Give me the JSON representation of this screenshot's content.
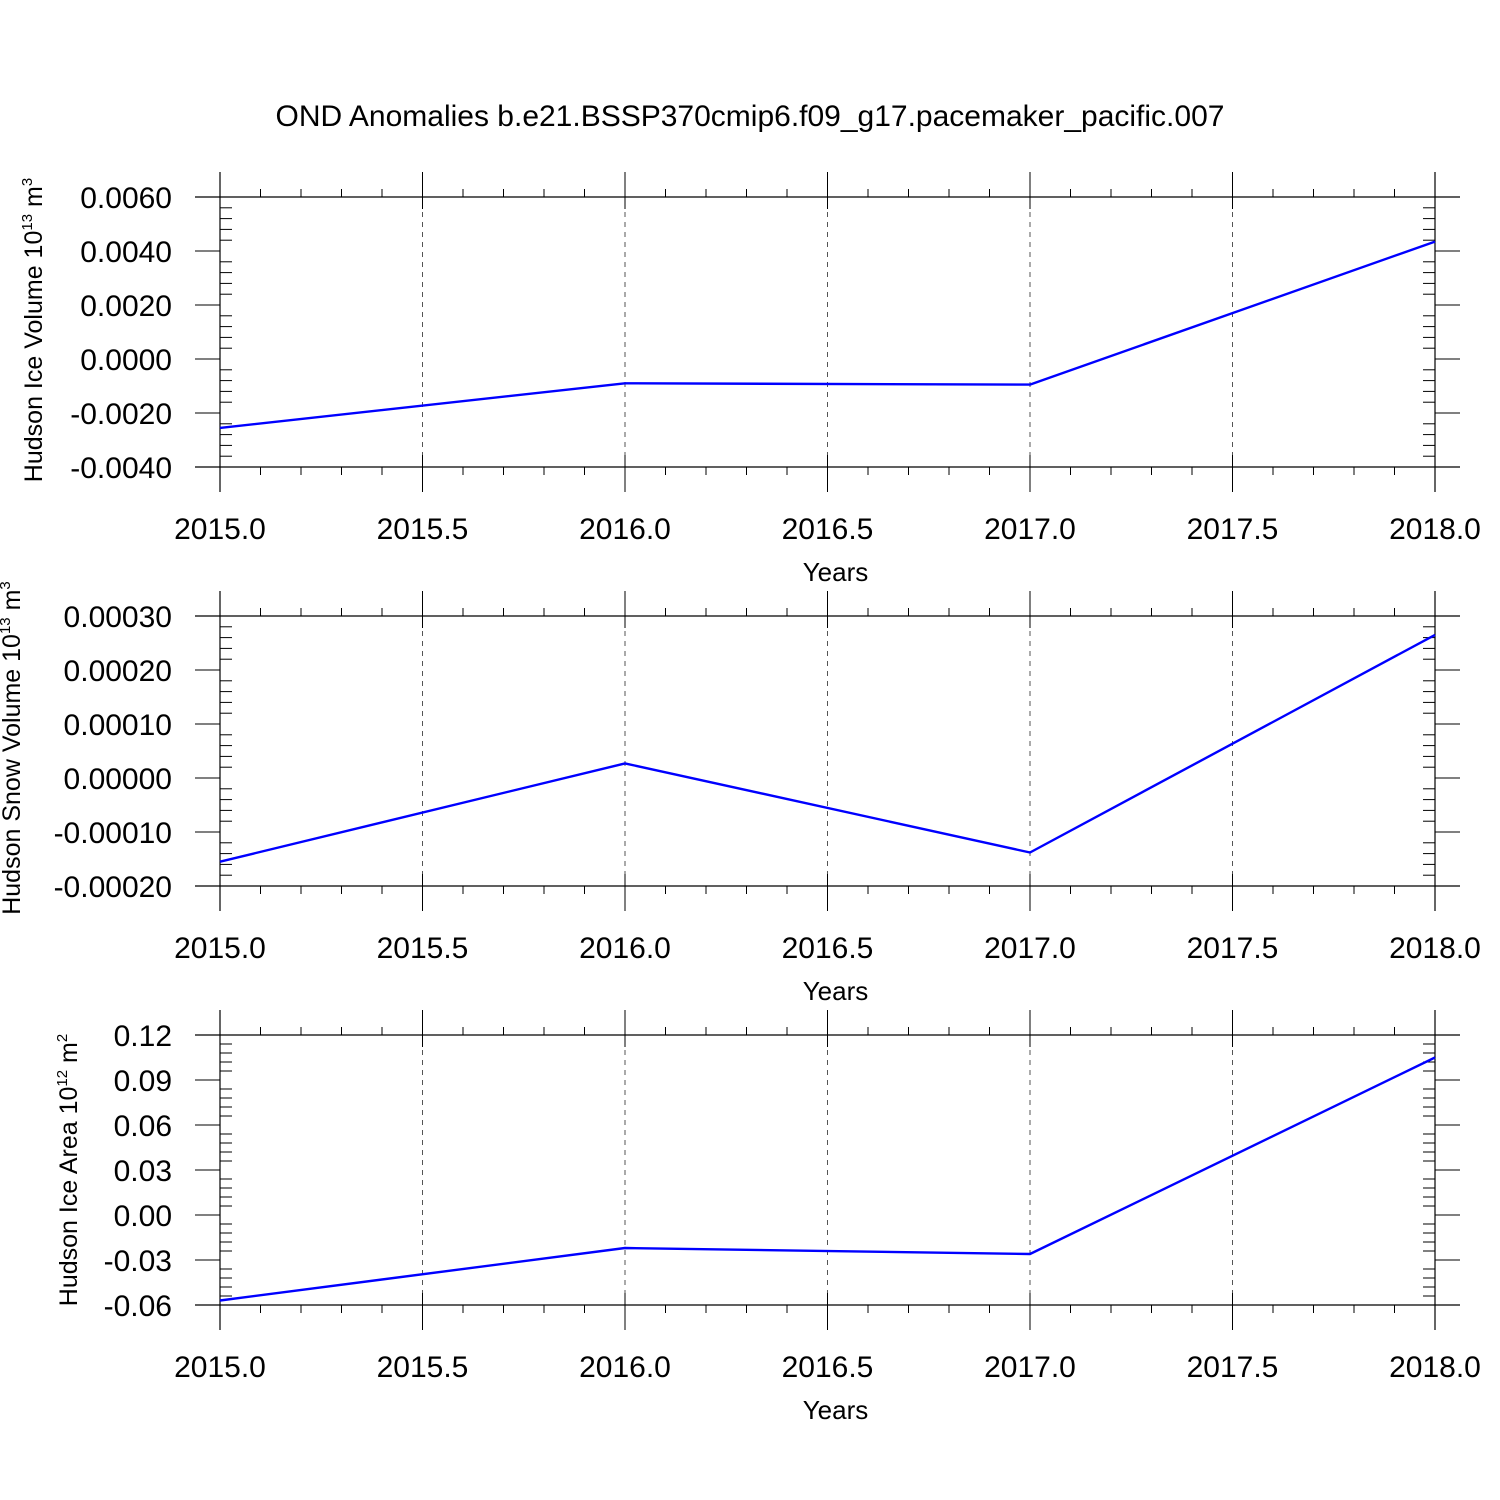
{
  "title": "OND Anomalies b.e21.BSSP370cmip6.f09_g17.pacemaker_pacific.007",
  "colors": {
    "series": "#0000ff"
  },
  "chart_data": [
    {
      "type": "line",
      "ylabel": "Hudson Ice Volume 10",
      "ylabel_exp": "13",
      "ylabel_unit": " m",
      "ylabel_unit_exp": "3",
      "xlabel": "Years",
      "xlim": [
        2015.0,
        2018.0
      ],
      "ylim": [
        -0.004,
        0.006
      ],
      "xticks": [
        "2015.0",
        "2015.5",
        "2016.0",
        "2016.5",
        "2017.0",
        "2017.5",
        "2018.0"
      ],
      "yticks": [
        "-0.0040",
        "-0.0020",
        "0.0000",
        "0.0020",
        "0.0040",
        "0.0060"
      ],
      "x": [
        2015,
        2016,
        2017,
        2018
      ],
      "y": [
        -0.00255,
        -0.0009,
        -0.00095,
        0.00435
      ]
    },
    {
      "type": "line",
      "ylabel": "Hudson Snow Volume 10",
      "ylabel_exp": "13",
      "ylabel_unit": " m",
      "ylabel_unit_exp": "3",
      "xlabel": "Years",
      "xlim": [
        2015.0,
        2018.0
      ],
      "ylim": [
        -0.0002,
        0.0003
      ],
      "xticks": [
        "2015.0",
        "2015.5",
        "2016.0",
        "2016.5",
        "2017.0",
        "2017.5",
        "2018.0"
      ],
      "yticks": [
        "-0.00020",
        "-0.00010",
        "0.00000",
        "0.00010",
        "0.00020",
        "0.00030"
      ],
      "x": [
        2015,
        2016,
        2017,
        2018
      ],
      "y": [
        -0.000155,
        2.7e-05,
        -0.000138,
        0.000265
      ]
    },
    {
      "type": "line",
      "ylabel": "Hudson Ice Area 10",
      "ylabel_exp": "12",
      "ylabel_unit": " m",
      "ylabel_unit_exp": "2",
      "xlabel": "Years",
      "xlim": [
        2015.0,
        2018.0
      ],
      "ylim": [
        -0.06,
        0.12
      ],
      "xticks": [
        "2015.0",
        "2015.5",
        "2016.0",
        "2016.5",
        "2017.0",
        "2017.5",
        "2018.0"
      ],
      "yticks": [
        "-0.06",
        "-0.03",
        "0.00",
        "0.03",
        "0.06",
        "0.09",
        "0.12"
      ],
      "x": [
        2015,
        2016,
        2017,
        2018
      ],
      "y": [
        -0.057,
        -0.022,
        -0.026,
        0.105
      ]
    }
  ]
}
